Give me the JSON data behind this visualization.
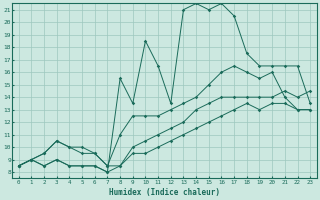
{
  "xlabel": "Humidex (Indice chaleur)",
  "bg_color": "#cce8e0",
  "grid_color": "#9dc8be",
  "line_color": "#1a6b5a",
  "xlim": [
    -0.5,
    23.5
  ],
  "ylim": [
    7.5,
    21.5
  ],
  "xticks": [
    0,
    1,
    2,
    3,
    4,
    5,
    6,
    7,
    8,
    9,
    10,
    11,
    12,
    13,
    14,
    15,
    16,
    17,
    18,
    19,
    20,
    21,
    22,
    23
  ],
  "yticks": [
    8,
    9,
    10,
    11,
    12,
    13,
    14,
    15,
    16,
    17,
    18,
    19,
    20,
    21
  ],
  "lines": [
    {
      "x": [
        0,
        1,
        2,
        3,
        4,
        5,
        6,
        7,
        8,
        9,
        10,
        11,
        12,
        13,
        14,
        15,
        16,
        17,
        18,
        19,
        20,
        21,
        22,
        23
      ],
      "y": [
        8.5,
        9.0,
        8.5,
        9.0,
        8.5,
        8.5,
        8.5,
        8.0,
        8.5,
        9.5,
        9.5,
        10.0,
        10.5,
        11.0,
        11.5,
        12.0,
        12.5,
        13.0,
        13.5,
        13.0,
        13.5,
        13.5,
        13.0,
        13.0
      ]
    },
    {
      "x": [
        0,
        1,
        2,
        3,
        4,
        5,
        6,
        7,
        8,
        9,
        10,
        11,
        12,
        13,
        14,
        15,
        16,
        17,
        18,
        19,
        20,
        21,
        22,
        23
      ],
      "y": [
        8.5,
        9.0,
        9.5,
        10.5,
        10.0,
        10.0,
        9.5,
        8.5,
        8.5,
        10.0,
        10.5,
        11.0,
        11.5,
        12.0,
        13.0,
        13.5,
        14.0,
        14.0,
        14.0,
        14.0,
        14.0,
        14.5,
        14.0,
        14.5
      ]
    },
    {
      "x": [
        0,
        1,
        2,
        3,
        4,
        5,
        6,
        7,
        8,
        9,
        10,
        11,
        12,
        13,
        14,
        15,
        16,
        17,
        18,
        19,
        20,
        21,
        22,
        23
      ],
      "y": [
        8.5,
        9.0,
        9.5,
        10.5,
        10.0,
        9.5,
        9.5,
        8.5,
        11.0,
        12.5,
        12.5,
        12.5,
        13.0,
        13.5,
        14.0,
        15.0,
        16.0,
        16.5,
        16.0,
        15.5,
        16.0,
        14.0,
        13.0,
        13.0
      ]
    },
    {
      "x": [
        0,
        1,
        2,
        3,
        4,
        5,
        6,
        7,
        8,
        9,
        10,
        11,
        12,
        13,
        14,
        15,
        16,
        17,
        18,
        19,
        20,
        21,
        22,
        23
      ],
      "y": [
        8.5,
        9.0,
        8.5,
        9.0,
        8.5,
        8.5,
        8.5,
        8.0,
        15.5,
        13.5,
        18.5,
        16.5,
        13.5,
        21.0,
        21.5,
        21.0,
        21.5,
        20.5,
        17.5,
        16.5,
        16.5,
        16.5,
        16.5,
        13.5
      ]
    }
  ]
}
